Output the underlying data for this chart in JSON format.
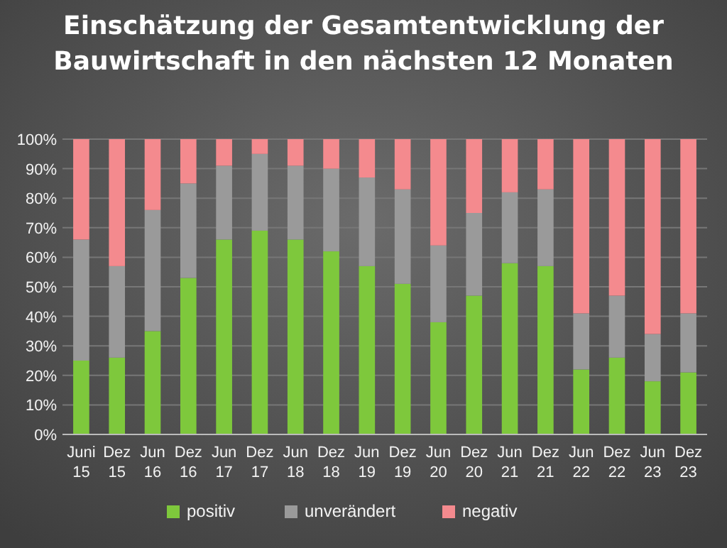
{
  "chart_data": {
    "type": "bar",
    "title": "Einschätzung der Gesamtentwicklung der Bauwirtschaft in den nächsten 12 Monaten",
    "stacked": true,
    "categories": [
      "Juni 15",
      "Dez 15",
      "Jun 16",
      "Dez 16",
      "Jun 17",
      "Dez 17",
      "Jun 18",
      "Dez 18",
      "Jun 19",
      "Dez 19",
      "Jun 20",
      "Dez 20",
      "Jun 21",
      "Dez 21",
      "Jun 22",
      "Dez 22",
      "Jun 23",
      "Dez 23"
    ],
    "series": [
      {
        "name": "positiv",
        "color": "#7ec83c",
        "values": [
          25,
          26,
          35,
          53,
          66,
          69,
          66,
          62,
          57,
          51,
          38,
          47,
          58,
          57,
          22,
          26,
          18,
          21
        ]
      },
      {
        "name": "unverändert",
        "color": "#9a9a9a",
        "values": [
          41,
          31,
          41,
          32,
          25,
          26,
          25,
          28,
          30,
          32,
          26,
          28,
          24,
          26,
          19,
          21,
          16,
          20
        ]
      },
      {
        "name": "negativ",
        "color": "#f48a8e",
        "values": [
          34,
          43,
          24,
          15,
          9,
          5,
          9,
          10,
          13,
          17,
          36,
          25,
          18,
          17,
          59,
          53,
          66,
          59
        ]
      }
    ],
    "ylim": [
      0,
      100
    ],
    "yticks": [
      {
        "value": 0,
        "label": "0%"
      },
      {
        "value": 10,
        "label": "10%"
      },
      {
        "value": 20,
        "label": "20%"
      },
      {
        "value": 30,
        "label": "30%"
      },
      {
        "value": 40,
        "label": "40%"
      },
      {
        "value": 50,
        "label": "50%"
      },
      {
        "value": 60,
        "label": "60%"
      },
      {
        "value": 70,
        "label": "70%"
      },
      {
        "value": 80,
        "label": "80%"
      },
      {
        "value": 90,
        "label": "90%"
      },
      {
        "value": 100,
        "label": "100%"
      }
    ],
    "grid": "y",
    "legend": "bottom"
  }
}
